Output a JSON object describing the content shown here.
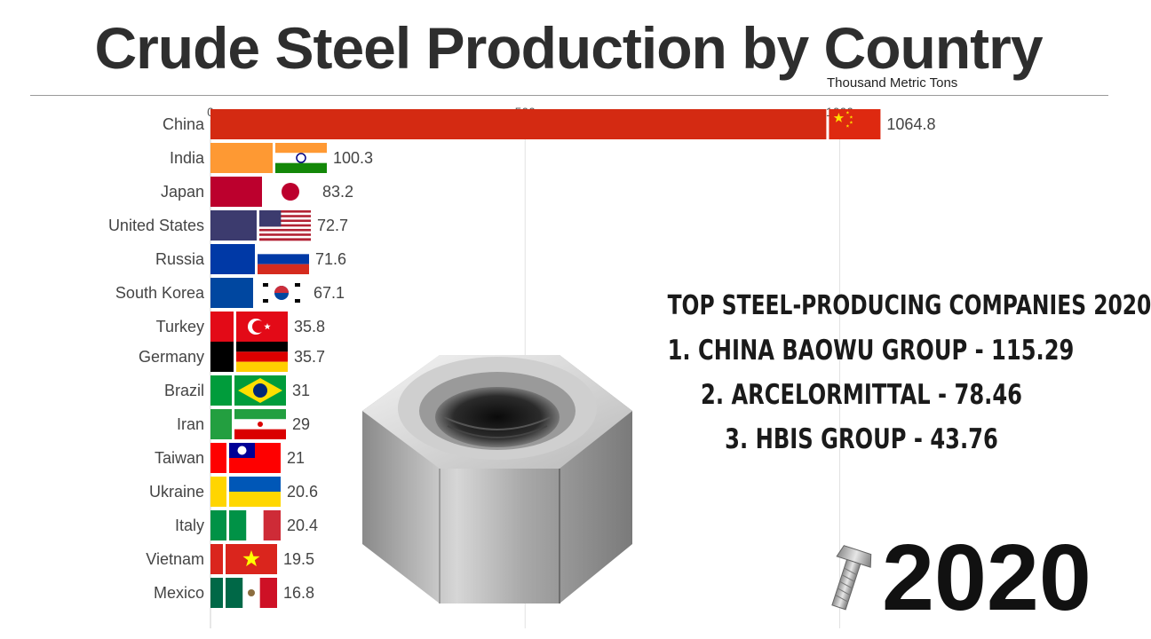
{
  "title": "Crude Steel Production by Country",
  "subtitle": "Thousand Metric Tons",
  "year": "2020",
  "companies": {
    "heading": "TOP STEEL-PRODUCING COMPANIES 2020",
    "lines": [
      "1. CHINA BAOWU GROUP - 115.29",
      "2. ARCELORMITTAL - 78.46",
      "3. HBIS GROUP - 43.76"
    ]
  },
  "chart_data": {
    "type": "bar",
    "orientation": "horizontal",
    "title": "Crude Steel Production by Country",
    "subtitle": "Thousand Metric Tons",
    "xlim": [
      0,
      1150
    ],
    "xticks": [
      0,
      500,
      1000
    ],
    "grid": true,
    "categories": [
      "China",
      "India",
      "Japan",
      "United States",
      "Russia",
      "South Korea",
      "Turkey",
      "Germany",
      "Brazil",
      "Iran",
      "Taiwan",
      "Ukraine",
      "Italy",
      "Vietnam",
      "Mexico"
    ],
    "values": [
      1064.8,
      100.3,
      83.2,
      72.7,
      71.6,
      67.1,
      35.8,
      35.7,
      31,
      29,
      21,
      20.6,
      20.4,
      19.5,
      16.8
    ],
    "value_labels": [
      "1064.8",
      "100.3",
      "83.2",
      "72.7",
      "71.6",
      "67.1",
      "35.8",
      "35.7",
      "31",
      "29",
      "21",
      "20.6",
      "20.4",
      "19.5",
      "16.8"
    ],
    "bar_colors": [
      "#d42a12",
      "#fe9933",
      "#bc002d",
      "#3c3b6e",
      "#0039a6",
      "#0047a0",
      "#e30a17",
      "#000000",
      "#009c3b",
      "#239f40",
      "#fe0000",
      "#ffd500",
      "#009246",
      "#da251d",
      "#006847"
    ],
    "flags": [
      "china-flag",
      "india-flag",
      "japan-flag",
      "usa-flag",
      "russia-flag",
      "south-korea-flag",
      "turkey-flag",
      "germany-flag",
      "brazil-flag",
      "iran-flag",
      "taiwan-flag",
      "ukraine-flag",
      "italy-flag",
      "vietnam-flag",
      "mexico-flag"
    ]
  }
}
